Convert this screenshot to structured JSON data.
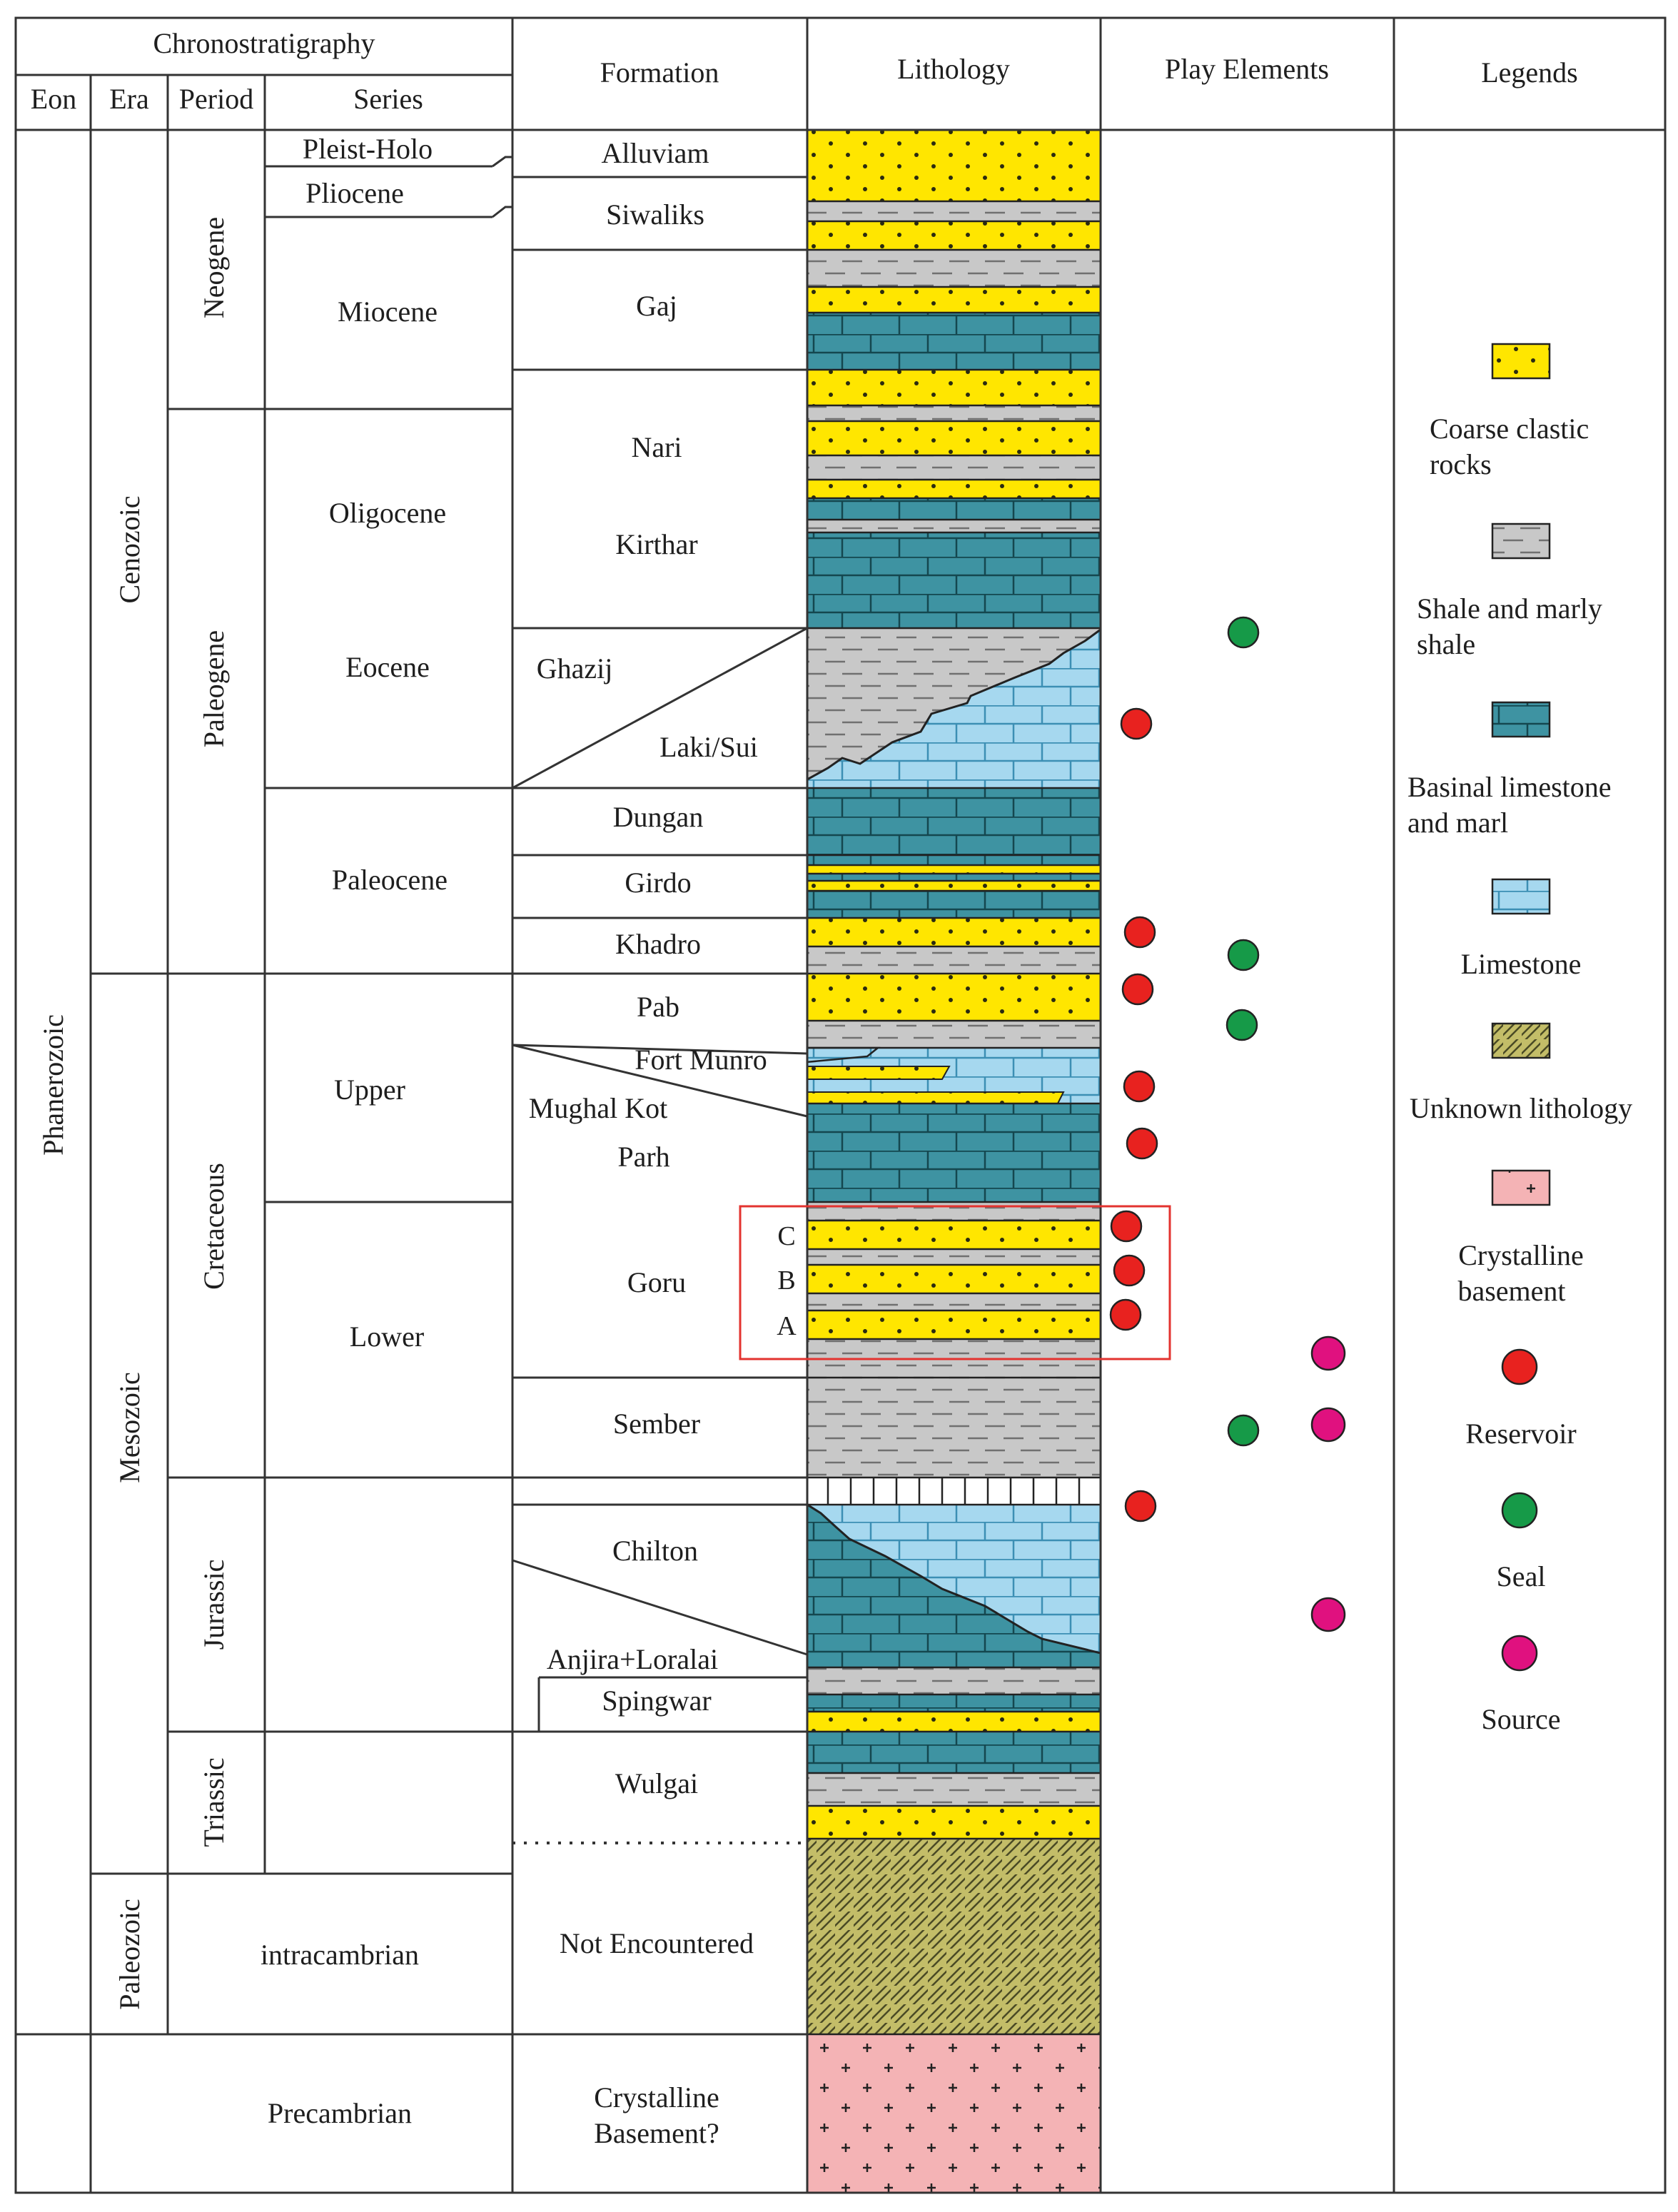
{
  "headers": {
    "chronostratigraphy": "Chronostratigraphy",
    "eon": "Eon",
    "era": "Era",
    "period": "Period",
    "series": "Series",
    "formation": "Formation",
    "lithology": "Lithology",
    "play_elements": "Play Elements",
    "legends": "Legends"
  },
  "eons": {
    "phanerozoic": "Phanerozoic"
  },
  "eras": {
    "cenozoic": "Cenozoic",
    "mesozoic": "Mesozoic",
    "paleozoic": "Paleozoic"
  },
  "periods": {
    "neogene": "Neogene",
    "paleogene": "Paleogene",
    "cretaceous": "Cretaceous",
    "jurassic": "Jurassic",
    "triassic": "Triassic"
  },
  "series": {
    "pleist_holo": "Pleist-Holo",
    "pliocene": "Pliocene",
    "miocene": "Miocene",
    "oligocene": "Oligocene",
    "eocene": "Eocene",
    "paleocene": "Paleocene",
    "upper": "Upper",
    "lower": "Lower",
    "intracambrian": "intracambrian",
    "precambrian": "Precambrian"
  },
  "formations": {
    "alluviam": "Alluviam",
    "siwaliks": "Siwaliks",
    "gaj": "Gaj",
    "nari": "Nari",
    "kirthar": "Kirthar",
    "ghazij": "Ghazij",
    "laki_sui": "Laki/Sui",
    "dungan": "Dungan",
    "girdo": "Girdo",
    "khadro": "Khadro",
    "pab": "Pab",
    "fort_munro": "Fort Munro",
    "mughal_kot": "Mughal Kot",
    "parh": "Parh",
    "goru": "Goru",
    "sember": "Sember",
    "chilton": "Chilton",
    "anjira_loralai": "Anjira+Loralai",
    "spingwar": "Spingwar",
    "wulgai": "Wulgai",
    "not_encountered": "Not Encountered",
    "crystalline_basement_1": "Crystalline",
    "crystalline_basement_2": "Basement?"
  },
  "goru_units": {
    "c": "C",
    "b": "B",
    "a": "A"
  },
  "legend": {
    "coarse_clastic_1": "Coarse clastic",
    "coarse_clastic_2": "rocks",
    "shale_1": "Shale and marly",
    "shale_2": "shale",
    "basinal_1": "Basinal limestone",
    "basinal_2": "and marl",
    "limestone": "Limestone",
    "unknown": "Unknown lithology",
    "crystalline_1": "Crystalline",
    "crystalline_2": "basement",
    "reservoir": "Reservoir",
    "seal": "Seal",
    "source": "Source"
  },
  "colors": {
    "coarse_clastic": "#ffe600",
    "shale": "#c8c8c8",
    "basinal_limestone": "#3e93a2",
    "limestone": "#a6d8ef",
    "unknown": "#c3bd68",
    "crystalline": "#f4b3b5",
    "reservoir": "#e8221f",
    "seal": "#169a48",
    "source": "#e0117f",
    "highlight_box": "#e3332f"
  },
  "play_elements": [
    {
      "type": "seal",
      "formation": "Ghazij"
    },
    {
      "type": "reservoir",
      "formation": "Laki/Sui"
    },
    {
      "type": "reservoir",
      "formation": "Khadro"
    },
    {
      "type": "seal",
      "formation": "Khadro"
    },
    {
      "type": "reservoir",
      "formation": "Pab"
    },
    {
      "type": "seal",
      "formation": "Pab"
    },
    {
      "type": "reservoir",
      "formation": "Fort Munro"
    },
    {
      "type": "reservoir",
      "formation": "Parh"
    },
    {
      "type": "reservoir",
      "formation": "Goru C"
    },
    {
      "type": "reservoir",
      "formation": "Goru B"
    },
    {
      "type": "reservoir",
      "formation": "Goru A"
    },
    {
      "type": "source",
      "formation": "Goru"
    },
    {
      "type": "seal",
      "formation": "Sember"
    },
    {
      "type": "source",
      "formation": "Sember"
    },
    {
      "type": "reservoir",
      "formation": "Chilton"
    },
    {
      "type": "source",
      "formation": "Chilton"
    }
  ]
}
